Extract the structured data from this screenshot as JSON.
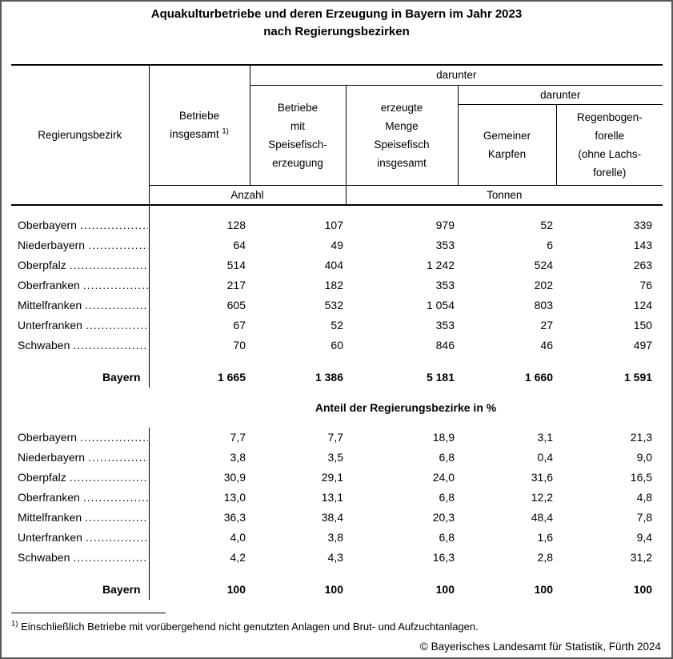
{
  "title": {
    "line1": "Aquakulturbetriebe und deren Erzeugung in Bayern im Jahr 2023",
    "line2": "nach Regierungsbezirken"
  },
  "table": {
    "stub_header": "Regierungsbezirk",
    "darunter_top": "darunter",
    "darunter_inner": "darunter",
    "col_betriebe_line1": "Betriebe",
    "col_betriebe_line2": "insgesamt",
    "footnote_marker": "1)",
    "col_speisefisch": "Betriebe\nmit\nSpeisefisch-\nerzeugung",
    "col_menge": "erzeugte\nMenge\nSpeisefisch\ninsgesamt",
    "col_karpfen": "Gemeiner\nKarpfen",
    "col_forelle": "Regenbogen-\nforelle\n(ohne Lachs-\nforelle)",
    "unit_anzahl": "Anzahl",
    "unit_tonnen": "Tonnen"
  },
  "leader_dots": "..............................................................",
  "sections": [
    {
      "rows": [
        {
          "label": "Oberbayern",
          "values": [
            "128",
            "107",
            "979",
            "52",
            "339"
          ]
        },
        {
          "label": "Niederbayern",
          "values": [
            "64",
            "49",
            "353",
            "6",
            "143"
          ]
        },
        {
          "label": "Oberpfalz",
          "values": [
            "514",
            "404",
            "1 242",
            "524",
            "263"
          ]
        },
        {
          "label": "Oberfranken",
          "values": [
            "217",
            "182",
            "353",
            "202",
            "76"
          ]
        },
        {
          "label": "Mittelfranken",
          "values": [
            "605",
            "532",
            "1 054",
            "803",
            "124"
          ]
        },
        {
          "label": "Unterfranken",
          "values": [
            "67",
            "52",
            "353",
            "27",
            "150"
          ]
        },
        {
          "label": "Schwaben",
          "values": [
            "70",
            "60",
            "846",
            "46",
            "497"
          ]
        }
      ],
      "total": {
        "label": "Bayern",
        "values": [
          "1 665",
          "1 386",
          "5 181",
          "1 660",
          "1 591"
        ]
      }
    },
    {
      "heading": "Anteil der Regierungsbezirke in %",
      "rows": [
        {
          "label": "Oberbayern",
          "values": [
            "7,7",
            "7,7",
            "18,9",
            "3,1",
            "21,3"
          ]
        },
        {
          "label": "Niederbayern",
          "values": [
            "3,8",
            "3,5",
            "6,8",
            "0,4",
            "9,0"
          ]
        },
        {
          "label": "Oberpfalz",
          "values": [
            "30,9",
            "29,1",
            "24,0",
            "31,6",
            "16,5"
          ]
        },
        {
          "label": "Oberfranken",
          "values": [
            "13,0",
            "13,1",
            "6,8",
            "12,2",
            "4,8"
          ]
        },
        {
          "label": "Mittelfranken",
          "values": [
            "36,3",
            "38,4",
            "20,3",
            "48,4",
            "7,8"
          ]
        },
        {
          "label": "Unterfranken",
          "values": [
            "4,0",
            "3,8",
            "6,8",
            "1,6",
            "9,4"
          ]
        },
        {
          "label": "Schwaben",
          "values": [
            "4,2",
            "4,3",
            "16,3",
            "2,8",
            "31,2"
          ]
        }
      ],
      "total": {
        "label": "Bayern",
        "values": [
          "100",
          "100",
          "100",
          "100",
          "100"
        ]
      }
    }
  ],
  "footnote": {
    "marker": "1)",
    "text": "Einschließlich Betriebe mit vorübergehend nicht genutzten Anlagen und Brut- und Aufzuchtanlagen."
  },
  "copyright": "© Bayerisches Landesamt für Statistik, Fürth 2024"
}
